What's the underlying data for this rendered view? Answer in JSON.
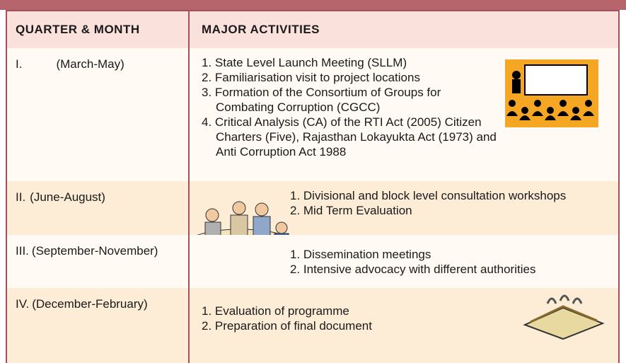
{
  "header": {
    "quarter": "QUARTER & MONTH",
    "activities": "MAJOR ACTIVITIES"
  },
  "rows": [
    {
      "numeral": "I.",
      "period": "(March-May)",
      "activities": [
        "1.  State Level Launch Meeting (SLLM)",
        "2.  Familiarisation visit to project locations",
        "3.  Formation of the Consortium of Groups for Combating Corruption (CGCC)",
        "4.  Critical Analysis (CA) of the RTI Act (2005) Citizen Charters (Five), Rajasthan Lokayukta Act (1973) and Anti Corruption Act 1988"
      ]
    },
    {
      "numeral": "II.",
      "period": "(June-August)",
      "activities": [
        "1. Divisional and block level consultation workshops",
        "2. Mid Term Evaluation"
      ]
    },
    {
      "numeral": "III.",
      "period": "(September-November)",
      "activities": [
        "1. Dissemination meetings",
        "2. Intensive advocacy with different authorities"
      ]
    },
    {
      "numeral": "IV.",
      "period": "(December-February)",
      "activities": [
        "1. Evaluation of programme",
        "2. Preparation of final document"
      ]
    }
  ]
}
